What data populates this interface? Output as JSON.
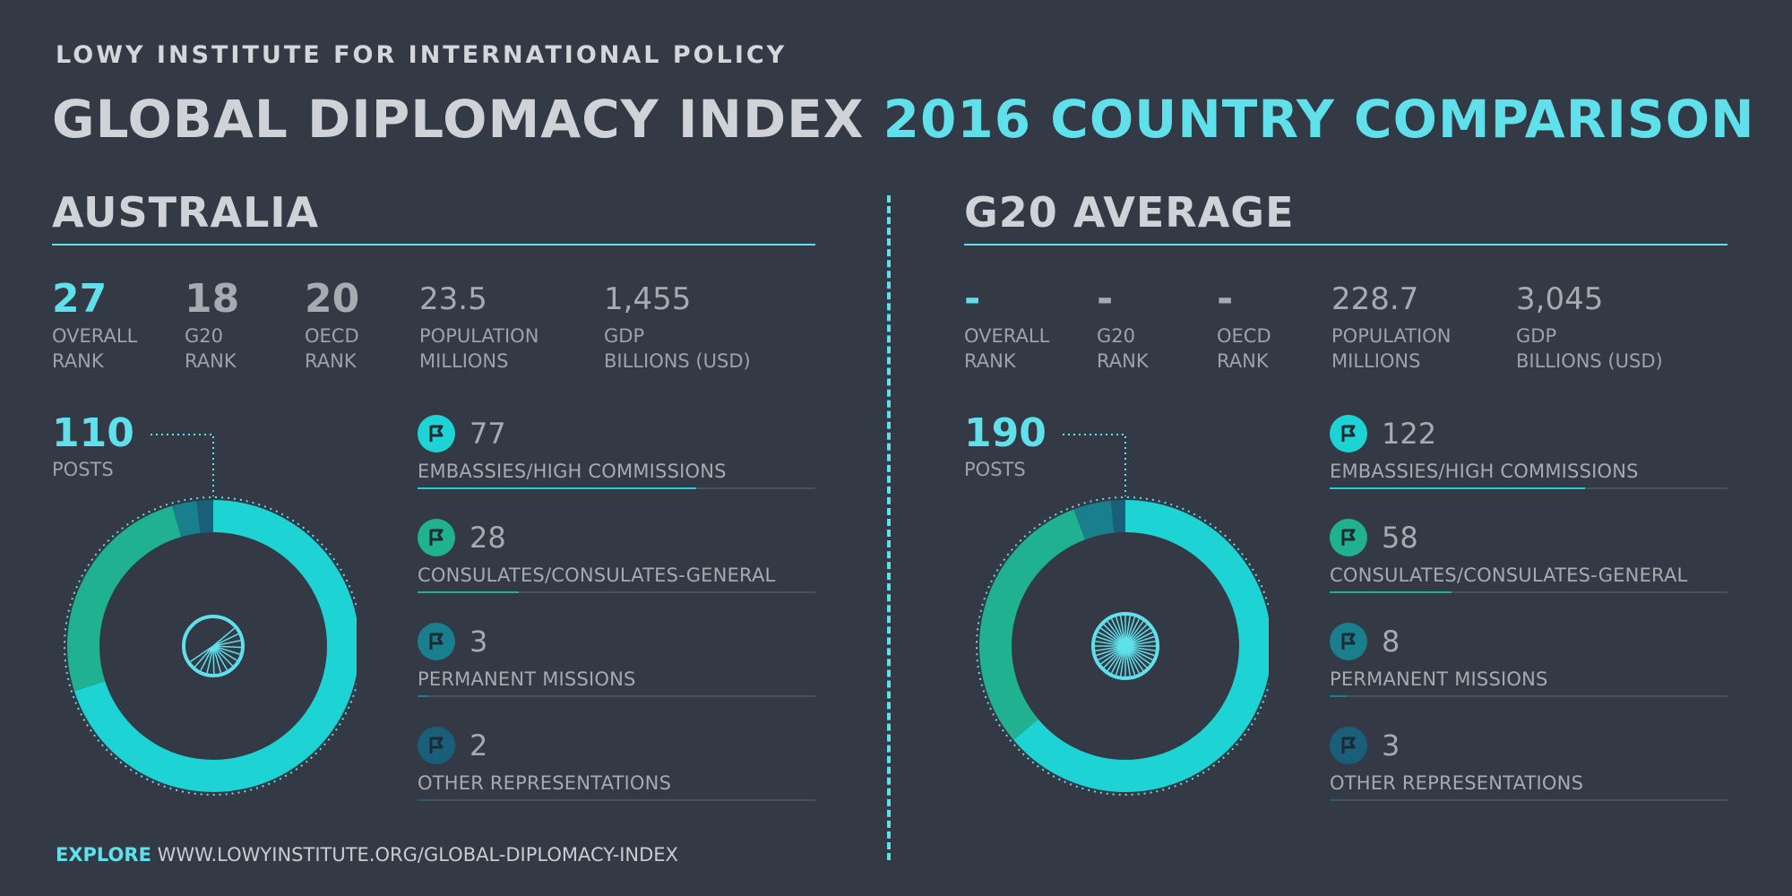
{
  "header": {
    "org": "LOWY INSTITUTE FOR INTERNATIONAL POLICY",
    "title_main": "GLOBAL DIPLOMACY INDEX",
    "title_accent": "2016 COUNTRY COMPARISON"
  },
  "footer": {
    "explore_label": "EXPLORE",
    "url": "WWW.LOWYINSTITUTE.ORG/GLOBAL-DIPLOMACY-INDEX"
  },
  "colors": {
    "background": "#333945",
    "accent": "#5fe0ea",
    "embassies": "#1dd3d3",
    "consulates": "#20b190",
    "permanent": "#1a7f8d",
    "other": "#1a5f7a",
    "track": "#4a505c"
  },
  "icons": {
    "category_badge": "flag-icon",
    "donut_center": "spoked-wheel-icon"
  },
  "chart_data": [
    {
      "type": "pie",
      "title": "AUSTRALIA",
      "stats": [
        {
          "value": "27",
          "label": "OVERALL RANK",
          "label_lines": [
            "OVERALL",
            "RANK"
          ],
          "highlight": true
        },
        {
          "value": "18",
          "label": "G20 RANK",
          "label_lines": [
            "G20",
            "RANK"
          ]
        },
        {
          "value": "20",
          "label": "OECD RANK",
          "label_lines": [
            "OECD",
            "RANK"
          ]
        },
        {
          "value": "23.5",
          "label": "POPULATION MILLIONS",
          "label_lines": [
            "POPULATION",
            "MILLIONS"
          ]
        },
        {
          "value": "1,455",
          "label": "GDP BILLIONS (USD)",
          "label_lines": [
            "GDP",
            "BILLIONS (USD)"
          ]
        }
      ],
      "total": 110,
      "total_label": "POSTS",
      "categories": [
        "EMBASSIES/HIGH COMMISSIONS",
        "CONSULATES/CONSULATES-GENERAL",
        "PERMANENT MISSIONS",
        "OTHER REPRESENTATIONS"
      ],
      "values": [
        77,
        28,
        3,
        2
      ],
      "bar_max": 110
    },
    {
      "type": "pie",
      "title": "G20 AVERAGE",
      "stats": [
        {
          "value": "-",
          "label": "OVERALL RANK",
          "label_lines": [
            "OVERALL",
            "RANK"
          ],
          "highlight": true
        },
        {
          "value": "-",
          "label": "G20 RANK",
          "label_lines": [
            "G20",
            "RANK"
          ]
        },
        {
          "value": "-",
          "label": "OECD RANK",
          "label_lines": [
            "OECD",
            "RANK"
          ]
        },
        {
          "value": "228.7",
          "label": "POPULATION MILLIONS",
          "label_lines": [
            "POPULATION",
            "MILLIONS"
          ]
        },
        {
          "value": "3,045",
          "label": "GDP BILLIONS (USD)",
          "label_lines": [
            "GDP",
            "BILLIONS (USD)"
          ]
        }
      ],
      "total": 190,
      "total_label": "POSTS",
      "categories": [
        "EMBASSIES/HIGH COMMISSIONS",
        "CONSULATES/CONSULATES-GENERAL",
        "PERMANENT MISSIONS",
        "OTHER REPRESENTATIONS"
      ],
      "values": [
        122,
        58,
        8,
        3
      ],
      "bar_max": 190
    }
  ]
}
